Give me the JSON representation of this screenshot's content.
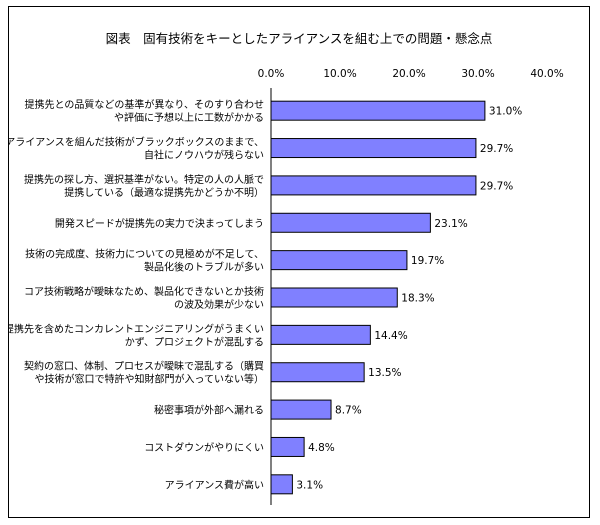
{
  "chart_data": {
    "type": "bar",
    "orientation": "horizontal",
    "title": "図表　固有技術をキーとしたアライアンスを組む上での問題・懸念点",
    "xlim": [
      0,
      40
    ],
    "ticks": [
      0,
      10,
      20,
      30,
      40
    ],
    "tick_labels": [
      "0.0%",
      "10.0%",
      "20.0%",
      "30.0%",
      "40.0%"
    ],
    "bar_color": "#8080ff",
    "bar_edge_color": "#000000",
    "categories": [
      [
        "提携先との品質などの基準が異なり、そのすり合わせ",
        "や評価に予想以上に工数がかかる"
      ],
      [
        "アライアンスを組んだ技術がブラックボックスのままで、",
        "自社にノウハウが残らない"
      ],
      [
        "提携先の探し方、選択基準がない。特定の人の人脈で",
        "提携している（最適な提携先かどうか不明）"
      ],
      [
        "開発スピードが提携先の実力で決まってしまう"
      ],
      [
        "技術の完成度、技術力についての見極めが不足して、",
        "製品化後のトラブルが多い"
      ],
      [
        "コア技術戦略が曖昧なため、製品化できないとか技術",
        "の波及効果が少ない"
      ],
      [
        "提携先を含めたコンカレントエンジニアリングがうまくい",
        "かず、プロジェクトが混乱する"
      ],
      [
        "契約の窓口、体制、プロセスが曖昧で混乱する（購買",
        "や技術が窓口で特許や知財部門が入っていない等）"
      ],
      [
        "秘密事項が外部へ漏れる"
      ],
      [
        "コストダウンがやりにくい"
      ],
      [
        "アライアンス費が高い"
      ]
    ],
    "values": [
      31.0,
      29.7,
      29.7,
      23.1,
      19.7,
      18.3,
      14.4,
      13.5,
      8.7,
      4.8,
      3.1
    ],
    "value_labels": [
      "31.0%",
      "29.7%",
      "29.7%",
      "23.1%",
      "19.7%",
      "18.3%",
      "14.4%",
      "13.5%",
      "8.7%",
      "4.8%",
      "3.1%"
    ]
  }
}
